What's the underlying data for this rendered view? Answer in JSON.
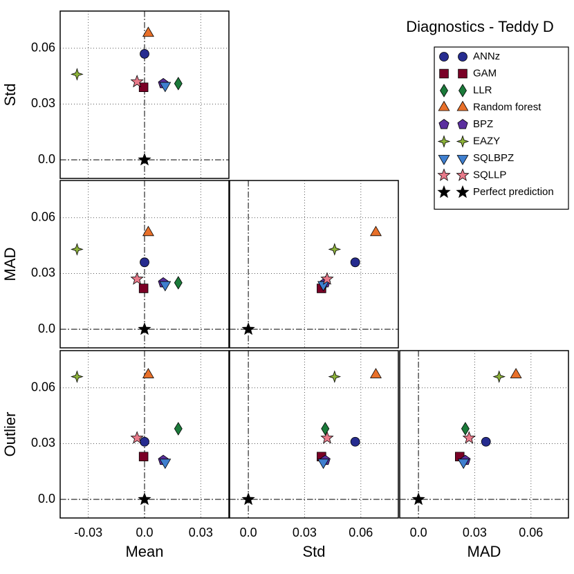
{
  "chart_data": {
    "type": "scatter",
    "title": "Diagnostics - Teddy D",
    "grid": true,
    "reference": 0,
    "legend": "upper right",
    "variables": [
      {
        "name": "Mean",
        "lim": [
          -0.045,
          0.045
        ],
        "ticks": [
          -0.03,
          {
            "value": 0,
            "label": "0.0"
          },
          0.03
        ]
      },
      {
        "name": "Std",
        "lim": [
          -0.01,
          0.08
        ],
        "ticks": [
          {
            "value": 0,
            "label": "0.0"
          },
          0.03,
          0.06
        ]
      },
      {
        "name": "MAD",
        "lim": [
          -0.01,
          0.08
        ],
        "ticks": [
          {
            "value": 0,
            "label": "0.0"
          },
          0.03,
          0.06
        ]
      },
      {
        "name": "Outlier",
        "lim": [
          -0.01,
          0.08
        ],
        "ticks": [
          {
            "value": 0,
            "label": "0.0"
          },
          0.03,
          0.06
        ]
      }
    ],
    "series": [
      {
        "name": "ANNz",
        "color": "#262c8f",
        "marker": "circle",
        "values": [
          0.0,
          0.057,
          0.036,
          0.031
        ]
      },
      {
        "name": "GAM",
        "color": "#7a0026",
        "marker": "square",
        "values": [
          -0.0005,
          0.039,
          0.022,
          0.023
        ]
      },
      {
        "name": "LLR",
        "color": "#1b7a3a",
        "marker": "diamond",
        "values": [
          0.018,
          0.041,
          0.025,
          0.038
        ]
      },
      {
        "name": "Random forest",
        "color": "#e8702a",
        "marker": "triangle-up",
        "values": [
          0.002,
          0.068,
          0.052,
          0.067
        ]
      },
      {
        "name": "BPZ",
        "color": "#5b2f9e",
        "marker": "pentagon",
        "values": [
          0.01,
          0.041,
          0.025,
          0.021
        ]
      },
      {
        "name": "EAZY",
        "color": "#8db33a",
        "marker": "star4",
        "values": [
          -0.036,
          0.046,
          0.043,
          0.066
        ]
      },
      {
        "name": "SQLBPZ",
        "color": "#3f7fcf",
        "marker": "triangle-down",
        "values": [
          0.011,
          0.04,
          0.024,
          0.02
        ]
      },
      {
        "name": "SQLLP",
        "color": "#e87a8a",
        "marker": "star",
        "values": [
          -0.004,
          0.042,
          0.027,
          0.033
        ]
      },
      {
        "name": "Perfect prediction",
        "color": "#000000",
        "marker": "star",
        "values": [
          0.0,
          0.0,
          0.0,
          0.0
        ]
      }
    ]
  }
}
